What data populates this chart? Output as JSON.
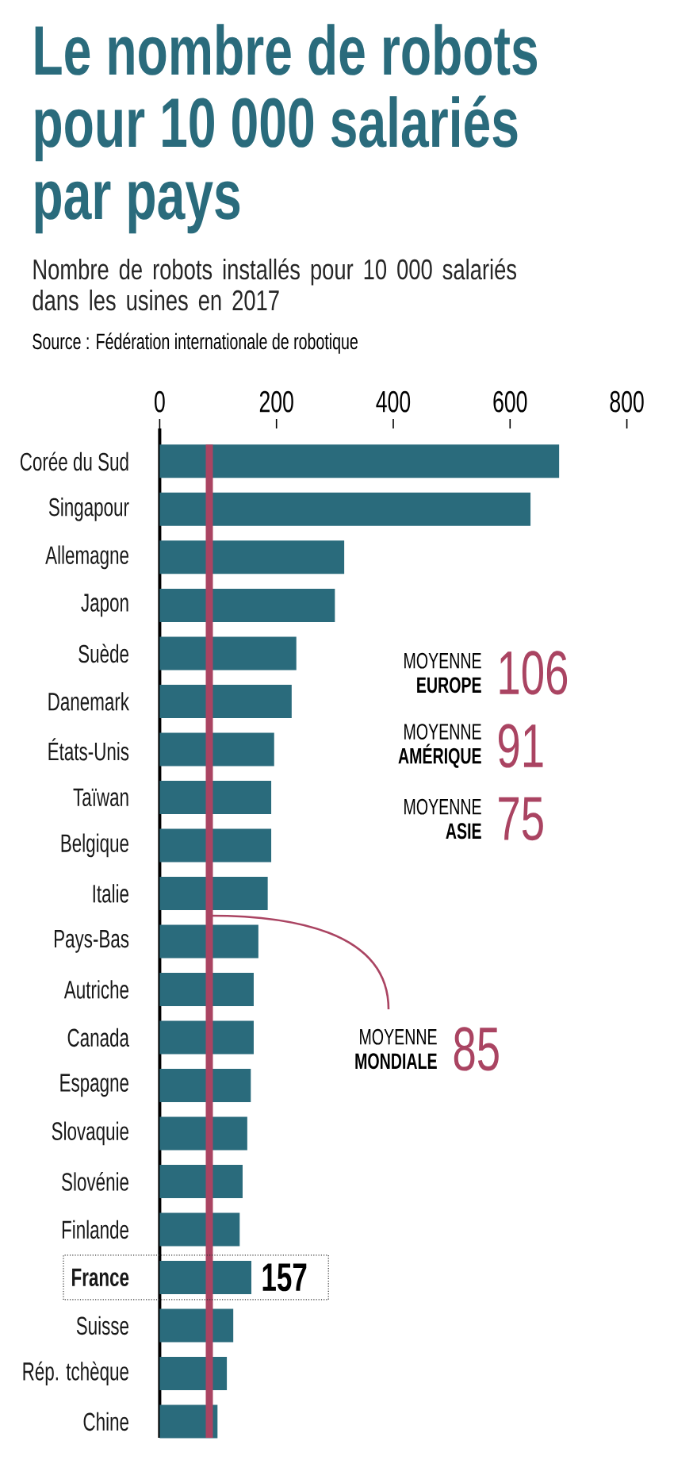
{
  "chart_data": {
    "type": "bar",
    "orientation": "horizontal",
    "title": "Le nombre de robots pour 10 000 salariés par pays",
    "subtitle": "Nombre de robots installés pour 10 000 salariés dans les usines en 2017",
    "annotations": [
      "Source : Fédération internationale de robotique",
      "MOYENNE **EUROPE**",
      "106",
      "MOYENNE **AMÉRIQUE**",
      "91",
      "MOYENNE **ASIE**",
      "75",
      "85"
    ],
    "categories": [
      "Corée du Sud",
      "Singapour",
      "Allemagne",
      "Japon",
      "Suède",
      "Danemark",
      "États-Unis",
      "Taïwan",
      "Belgique",
      "Italie",
      "Pays-Bas",
      "Autriche",
      "Canada",
      "Espagne",
      "Slovaquie",
      "Slovénie",
      "Finlande",
      "France",
      "Suisse",
      "Rép. tchèque",
      "Chine"
    ],
    "values": [
      684,
      635,
      316,
      300,
      234,
      226,
      196,
      191,
      191,
      185,
      169,
      161,
      161,
      156,
      150,
      142,
      137,
      157,
      126,
      115,
      99
    ],
    "value_labels": [
      null,
      null,
      null,
      null,
      null,
      null,
      null,
      null,
      null,
      null,
      null,
      null,
      null,
      null,
      null,
      null,
      null,
      "157",
      null,
      null,
      null
    ],
    "color": "#2a6b7c",
    "xlim": [
      0,
      800
    ],
    "xticks": [
      0,
      200,
      400,
      600,
      800
    ],
    "ref_lines": [
      {
        "axis": "x",
        "value": 85,
        "label": "MOYENNE **MONDIALE**",
        "color": "#aa4462"
      }
    ]
  }
}
